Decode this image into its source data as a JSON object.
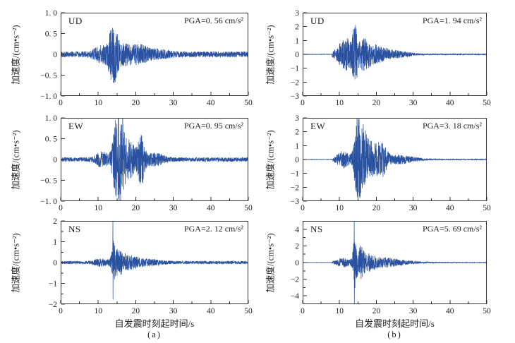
{
  "figure": {
    "xlabel": "自发震时刻起时间/s",
    "ylabel": "加速度/(cm•s⁻²)",
    "captions": {
      "a": "(a)",
      "b": "(b)"
    },
    "trace_color": "#2a52a0",
    "axis_color": "#333333",
    "text_color": "#222222"
  },
  "chart_data": [
    {
      "id": "a-ud",
      "type": "line",
      "column": "a",
      "direction": "UD",
      "pga_label": "PGA=0. 56 cm/s²",
      "pga_value": 0.56,
      "ylabel": "加速度/(cm•s⁻²)",
      "xlim": [
        0,
        50
      ],
      "xticks": [
        0,
        10,
        20,
        30,
        40,
        50
      ],
      "xticklabels": [
        "0",
        "10",
        "20",
        "30",
        "40",
        "50"
      ],
      "xminor": [
        5,
        15,
        25,
        35,
        45
      ],
      "ylim": [
        -1,
        1
      ],
      "yticks": [
        1.0,
        0.5,
        0,
        -0.5,
        -1.0
      ],
      "yticklabels": [
        "1. 0",
        "0. 5",
        "0",
        "−0. 5",
        "−1. 0"
      ],
      "yminor": [],
      "signal": {
        "seed": 101,
        "noise": 0.07,
        "onset": 0,
        "pre": 0,
        "bursts": [
          {
            "c": 14,
            "w": 1.3,
            "a": 0.6
          },
          {
            "c": 11,
            "w": 2.5,
            "a": 0.16
          },
          {
            "c": 17,
            "w": 2.5,
            "a": 0.22
          },
          {
            "c": 21,
            "w": 2,
            "a": 0.15
          },
          {
            "c": 25,
            "w": 4,
            "a": 0.08
          }
        ],
        "spike": null
      }
    },
    {
      "id": "b-ud",
      "type": "line",
      "column": "b",
      "direction": "UD",
      "pga_label": "PGA=1. 94 cm/s²",
      "pga_value": 1.94,
      "ylabel": "加速度/(cm•s⁻²)",
      "xlim": [
        0,
        50
      ],
      "xticks": [
        0,
        10,
        20,
        30,
        40,
        50
      ],
      "xticklabels": [
        "0",
        "10",
        "20",
        "30",
        "40",
        "50"
      ],
      "xminor": [
        5,
        15,
        25,
        35,
        45
      ],
      "ylim": [
        -3,
        3
      ],
      "yticks": [
        3,
        2,
        1,
        0,
        -1,
        -2,
        -3
      ],
      "yticklabels": [
        "3",
        "2",
        "1",
        "0",
        "−1",
        "−2",
        "−3"
      ],
      "yminor": [],
      "signal": {
        "seed": 202,
        "noise": 0.1,
        "onset": 8,
        "pre": 0.012,
        "bursts": [
          {
            "c": 14.2,
            "w": 0.7,
            "a": 1.95
          },
          {
            "c": 10.5,
            "w": 1.8,
            "a": 0.7
          },
          {
            "c": 12.5,
            "w": 1.5,
            "a": 0.8
          },
          {
            "c": 16.5,
            "w": 2,
            "a": 0.95
          },
          {
            "c": 20,
            "w": 3,
            "a": 0.5
          },
          {
            "c": 25,
            "w": 5,
            "a": 0.22
          }
        ],
        "spike": {
          "t": 14.15,
          "amp": 1.94,
          "neg": -1.8
        }
      }
    },
    {
      "id": "a-ew",
      "type": "line",
      "column": "a",
      "direction": "EW",
      "pga_label": "PGA=0. 95 cm/s²",
      "pga_value": 0.95,
      "ylabel": "加速度/(cm•s⁻²)",
      "xlim": [
        0,
        50
      ],
      "xticks": [
        0,
        10,
        20,
        30,
        40,
        50
      ],
      "xticklabels": [
        "0",
        "10",
        "20",
        "30",
        "40",
        "50"
      ],
      "xminor": [
        5,
        15,
        25,
        35,
        45
      ],
      "ylim": [
        -1,
        1
      ],
      "yticks": [
        1.0,
        0.5,
        0,
        -0.5,
        -1.0
      ],
      "yticklabels": [
        "1. 0",
        "0. 5",
        "0",
        "−0. 5",
        "−1. 0"
      ],
      "yminor": [],
      "signal": {
        "seed": 303,
        "noise": 0.05,
        "onset": 0,
        "pre": 0,
        "bursts": [
          {
            "c": 14.8,
            "w": 1.1,
            "a": 0.85
          },
          {
            "c": 16.2,
            "w": 0.8,
            "a": 0.75
          },
          {
            "c": 18,
            "w": 2.2,
            "a": 0.45
          },
          {
            "c": 21.5,
            "w": 1,
            "a": 0.55
          },
          {
            "c": 11,
            "w": 2,
            "a": 0.15
          },
          {
            "c": 25,
            "w": 3,
            "a": 0.12
          }
        ],
        "spike": {
          "t": 14.6,
          "amp": 0.95,
          "neg": -0.85
        }
      }
    },
    {
      "id": "b-ew",
      "type": "line",
      "column": "b",
      "direction": "EW",
      "pga_label": "PGA=3. 18 cm/s²",
      "pga_value": 3.18,
      "ylabel": "加速度/(cm•s⁻²)",
      "xlim": [
        0,
        50
      ],
      "xticks": [
        0,
        10,
        20,
        30,
        40,
        50
      ],
      "xticklabels": [
        "0",
        "10",
        "20",
        "30",
        "40",
        "50"
      ],
      "xminor": [
        5,
        15,
        25,
        35,
        45
      ],
      "ylim": [
        -3,
        3
      ],
      "yticks": [
        3,
        2,
        1,
        0,
        -1,
        -2,
        -3
      ],
      "yticklabels": [
        "3",
        "2",
        "1",
        "0",
        "−1",
        "−2",
        "−3"
      ],
      "yminor": [],
      "signal": {
        "seed": 404,
        "noise": 0.1,
        "onset": 8.2,
        "pre": 0.012,
        "bursts": [
          {
            "c": 14.8,
            "w": 1.0,
            "a": 2.4
          },
          {
            "c": 16.3,
            "w": 1.2,
            "a": 1.9
          },
          {
            "c": 18.5,
            "w": 2,
            "a": 1.2
          },
          {
            "c": 21.5,
            "w": 1.5,
            "a": 1.0
          },
          {
            "c": 11,
            "w": 2,
            "a": 0.55
          },
          {
            "c": 26,
            "w": 5,
            "a": 0.3
          }
        ],
        "spike": {
          "t": 14.75,
          "amp": 3.18,
          "neg": -2.45
        }
      }
    },
    {
      "id": "a-ns",
      "type": "line",
      "column": "a",
      "direction": "NS",
      "pga_label": "PGA=2. 12 cm/s²",
      "pga_value": 2.12,
      "ylabel": "加速度/(cm•s⁻²)",
      "xlim": [
        0,
        50
      ],
      "xticks": [
        0,
        10,
        20,
        30,
        40,
        50
      ],
      "xticklabels": [
        "0",
        "10",
        "20",
        "30",
        "40",
        "50"
      ],
      "xminor": [
        5,
        15,
        25,
        35,
        45
      ],
      "ylim": [
        -2,
        2
      ],
      "yticks": [
        2,
        1,
        0,
        -1,
        -2
      ],
      "yticklabels": [
        "2",
        "1",
        "0",
        "−1",
        "−2"
      ],
      "yminor": [
        1.5,
        0.5,
        -0.5,
        -1.5
      ],
      "signal": {
        "seed": 505,
        "noise": 0.07,
        "onset": 0,
        "pre": 0,
        "bursts": [
          {
            "c": 14,
            "w": 0.5,
            "a": 0.8
          },
          {
            "c": 15.3,
            "w": 1.6,
            "a": 0.5
          },
          {
            "c": 18.5,
            "w": 3,
            "a": 0.28
          },
          {
            "c": 10.5,
            "w": 2,
            "a": 0.14
          },
          {
            "c": 24,
            "w": 4,
            "a": 0.1
          }
        ],
        "spike": {
          "t": 13.9,
          "amp": 2.12,
          "neg": -1.78
        }
      }
    },
    {
      "id": "b-ns",
      "type": "line",
      "column": "b",
      "direction": "NS",
      "pga_label": "PGA=5. 69 cm/s²",
      "pga_value": 5.69,
      "ylabel": "加速度/(cm•s⁻²)",
      "xlim": [
        0,
        50
      ],
      "xticks": [
        0,
        10,
        20,
        30,
        40,
        50
      ],
      "xticklabels": [
        "0",
        "10",
        "20",
        "30",
        "40",
        "50"
      ],
      "xminor": [
        5,
        15,
        25,
        35,
        45
      ],
      "ylim": [
        -5,
        5
      ],
      "yticks": [
        4,
        2,
        0,
        -2,
        -4
      ],
      "yticklabels": [
        "4",
        "2",
        "0",
        "−2",
        "−4"
      ],
      "yminor": [
        3,
        1,
        -1,
        -3
      ],
      "signal": {
        "seed": 606,
        "noise": 0.1,
        "onset": 8,
        "pre": 0.015,
        "bursts": [
          {
            "c": 14,
            "w": 0.4,
            "a": 2.3
          },
          {
            "c": 15.2,
            "w": 1.3,
            "a": 1.7
          },
          {
            "c": 17.5,
            "w": 2.5,
            "a": 0.9
          },
          {
            "c": 11,
            "w": 2,
            "a": 0.5
          },
          {
            "c": 22,
            "w": 4,
            "a": 0.45
          },
          {
            "c": 27,
            "w": 5,
            "a": 0.2
          }
        ],
        "spike": {
          "t": 14.0,
          "amp": 5.69,
          "neg": -5.2
        }
      }
    }
  ]
}
